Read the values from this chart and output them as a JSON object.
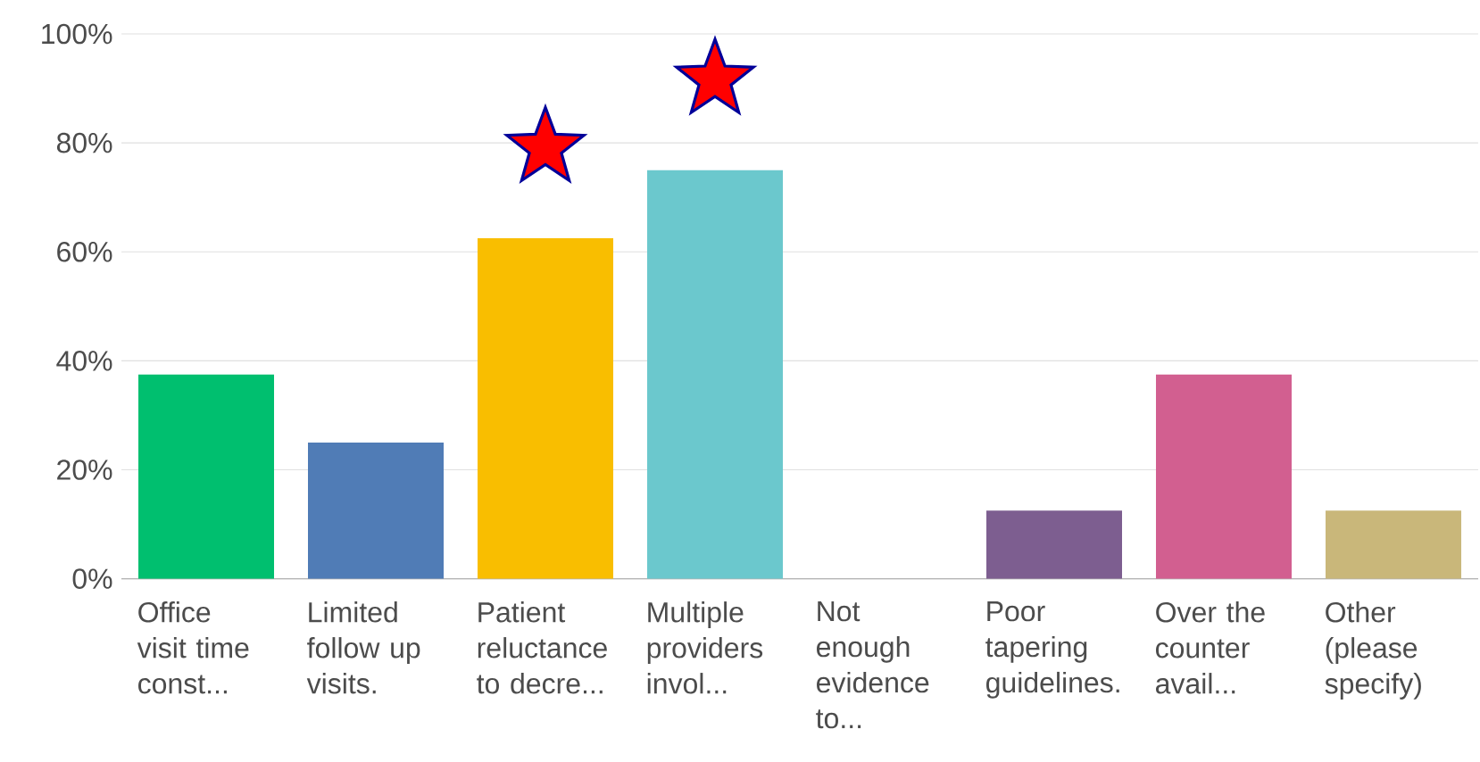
{
  "chart_data": {
    "type": "bar",
    "categories": [
      "Office visit time const...",
      "Limited follow up visits.",
      "Patient reluctance to decre...",
      "Multiple providers invol...",
      "Not enough evidence to...",
      "Poor tapering guidelines.",
      "Over the counter avail...",
      "Other (please specify)"
    ],
    "values": [
      37.5,
      25,
      62.5,
      75,
      0,
      12.5,
      37.5,
      12.5
    ],
    "colors": [
      "#00bf6f",
      "#507cb6",
      "#f9be00",
      "#6bc8cd",
      "#9e9e9e",
      "#7d5e90",
      "#d25f90",
      "#c9b77a"
    ],
    "ylim": [
      0,
      100
    ],
    "yticks": [
      {
        "value": 0,
        "label": "0%"
      },
      {
        "value": 20,
        "label": "20%"
      },
      {
        "value": 40,
        "label": "40%"
      },
      {
        "value": 60,
        "label": "60%"
      },
      {
        "value": 80,
        "label": "80%"
      },
      {
        "value": 100,
        "label": "100%"
      }
    ],
    "grid": "y"
  }
}
